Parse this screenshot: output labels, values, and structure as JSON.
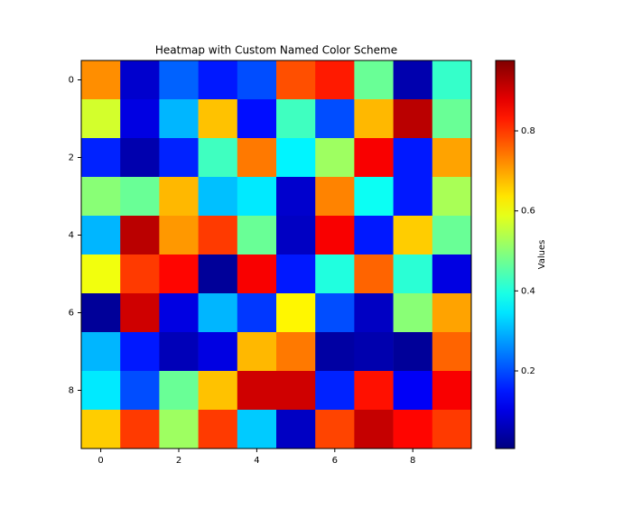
{
  "chart_data": {
    "type": "heatmap",
    "title": "Heatmap with Custom Named Color Scheme",
    "colorbar_label": "Values",
    "colormap": "jet",
    "xlim": [
      -0.5,
      9.5
    ],
    "ylim": [
      9.5,
      -0.5
    ],
    "xticks": [
      0,
      2,
      4,
      6,
      8
    ],
    "yticks": [
      0,
      2,
      4,
      6,
      8
    ],
    "clim": [
      0.006,
      0.976
    ],
    "cticks": [
      0.2,
      0.4,
      0.6,
      0.8
    ],
    "z": [
      [
        0.72,
        0.08,
        0.22,
        0.15,
        0.2,
        0.78,
        0.83,
        0.47,
        0.05,
        0.42
      ],
      [
        0.57,
        0.1,
        0.3,
        0.67,
        0.14,
        0.43,
        0.2,
        0.68,
        0.92,
        0.47
      ],
      [
        0.16,
        0.05,
        0.16,
        0.43,
        0.74,
        0.36,
        0.52,
        0.86,
        0.15,
        0.7
      ],
      [
        0.5,
        0.47,
        0.68,
        0.31,
        0.35,
        0.08,
        0.73,
        0.38,
        0.15,
        0.53
      ],
      [
        0.3,
        0.92,
        0.71,
        0.8,
        0.47,
        0.07,
        0.86,
        0.15,
        0.66,
        0.47
      ],
      [
        0.6,
        0.8,
        0.85,
        0.03,
        0.86,
        0.15,
        0.4,
        0.76,
        0.41,
        0.1
      ],
      [
        0.03,
        0.9,
        0.1,
        0.3,
        0.18,
        0.62,
        0.2,
        0.07,
        0.5,
        0.7
      ],
      [
        0.3,
        0.15,
        0.06,
        0.1,
        0.68,
        0.74,
        0.04,
        0.05,
        0.03,
        0.76
      ],
      [
        0.35,
        0.2,
        0.47,
        0.67,
        0.9,
        0.9,
        0.16,
        0.84,
        0.12,
        0.86
      ],
      [
        0.66,
        0.8,
        0.52,
        0.8,
        0.32,
        0.07,
        0.79,
        0.91,
        0.85,
        0.8
      ]
    ]
  }
}
